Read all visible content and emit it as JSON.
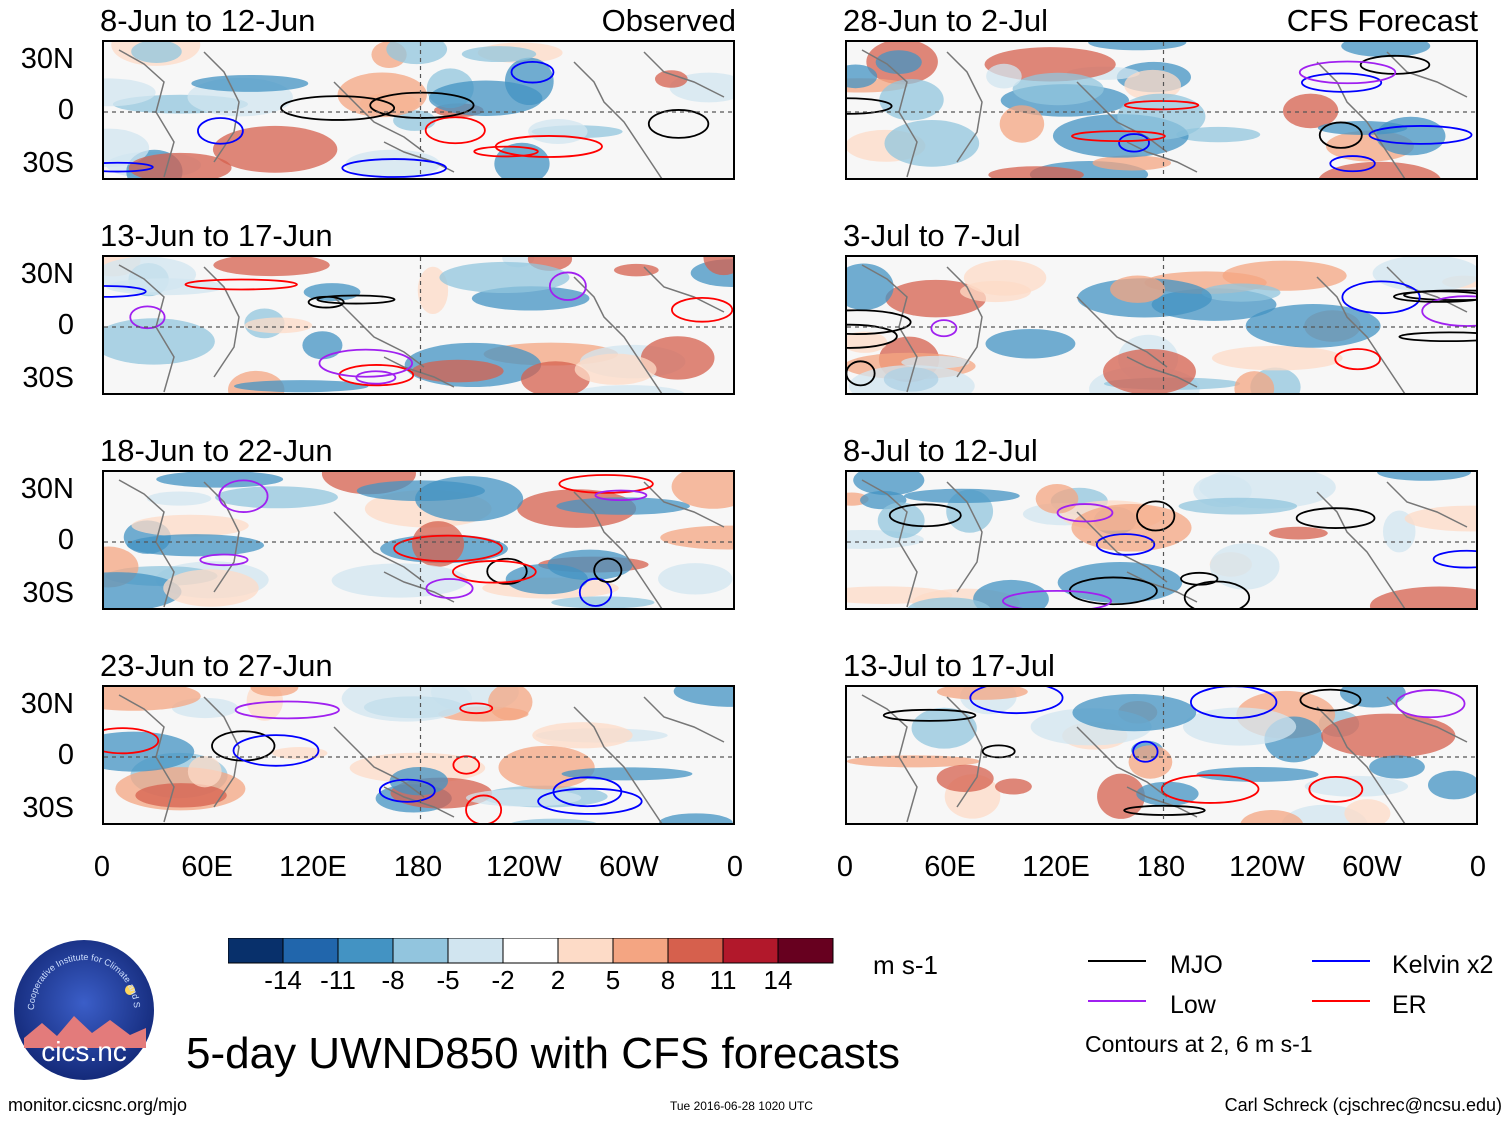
{
  "figure": {
    "title": "5-day UWND850 with CFS forecasts",
    "website": "monitor.cicsnc.org/mjo",
    "timestamp": "Tue 2016-06-28 1020 UTC",
    "author": "Carl Schreck (cjschrec@ncsu.edu)",
    "logo_text": "cics.nc",
    "logo_ring_text": "Cooperative Institute for Climate and Satellites"
  },
  "columns": {
    "left_label": "Observed",
    "right_label": "CFS Forecast"
  },
  "panels_left": [
    {
      "date_range": "8-Jun to 12-Jun"
    },
    {
      "date_range": "13-Jun to 17-Jun"
    },
    {
      "date_range": "18-Jun to 22-Jun"
    },
    {
      "date_range": "23-Jun to 27-Jun"
    }
  ],
  "panels_right": [
    {
      "date_range": "28-Jun to 2-Jul"
    },
    {
      "date_range": "3-Jul to 7-Jul"
    },
    {
      "date_range": "8-Jul to 12-Jul"
    },
    {
      "date_range": "13-Jul to 17-Jul"
    }
  ],
  "axes": {
    "lat_labels": [
      "30N",
      "0",
      "30S"
    ],
    "lon_labels": [
      "0",
      "60E",
      "120E",
      "180",
      "120W",
      "60W",
      "0"
    ]
  },
  "colorbar": {
    "unit": "m s-1",
    "ticks": [
      "-14",
      "-11",
      "-8",
      "-5",
      "-2",
      "2",
      "5",
      "8",
      "11",
      "14"
    ],
    "colors": [
      "#08306b",
      "#2166ac",
      "#4393c3",
      "#92c5de",
      "#d1e5f0",
      "#ffffff",
      "#fddbc7",
      "#f4a582",
      "#d6604d",
      "#b2182b",
      "#67001f"
    ]
  },
  "legend": {
    "items": [
      {
        "label": "MJO",
        "color": "#000000"
      },
      {
        "label": "Kelvin x2",
        "color": "#0000ff"
      },
      {
        "label": "Low",
        "color": "#a020f0"
      },
      {
        "label": "ER",
        "color": "#ff0000"
      }
    ],
    "note": "Contours at 2, 6 m s-1"
  }
}
